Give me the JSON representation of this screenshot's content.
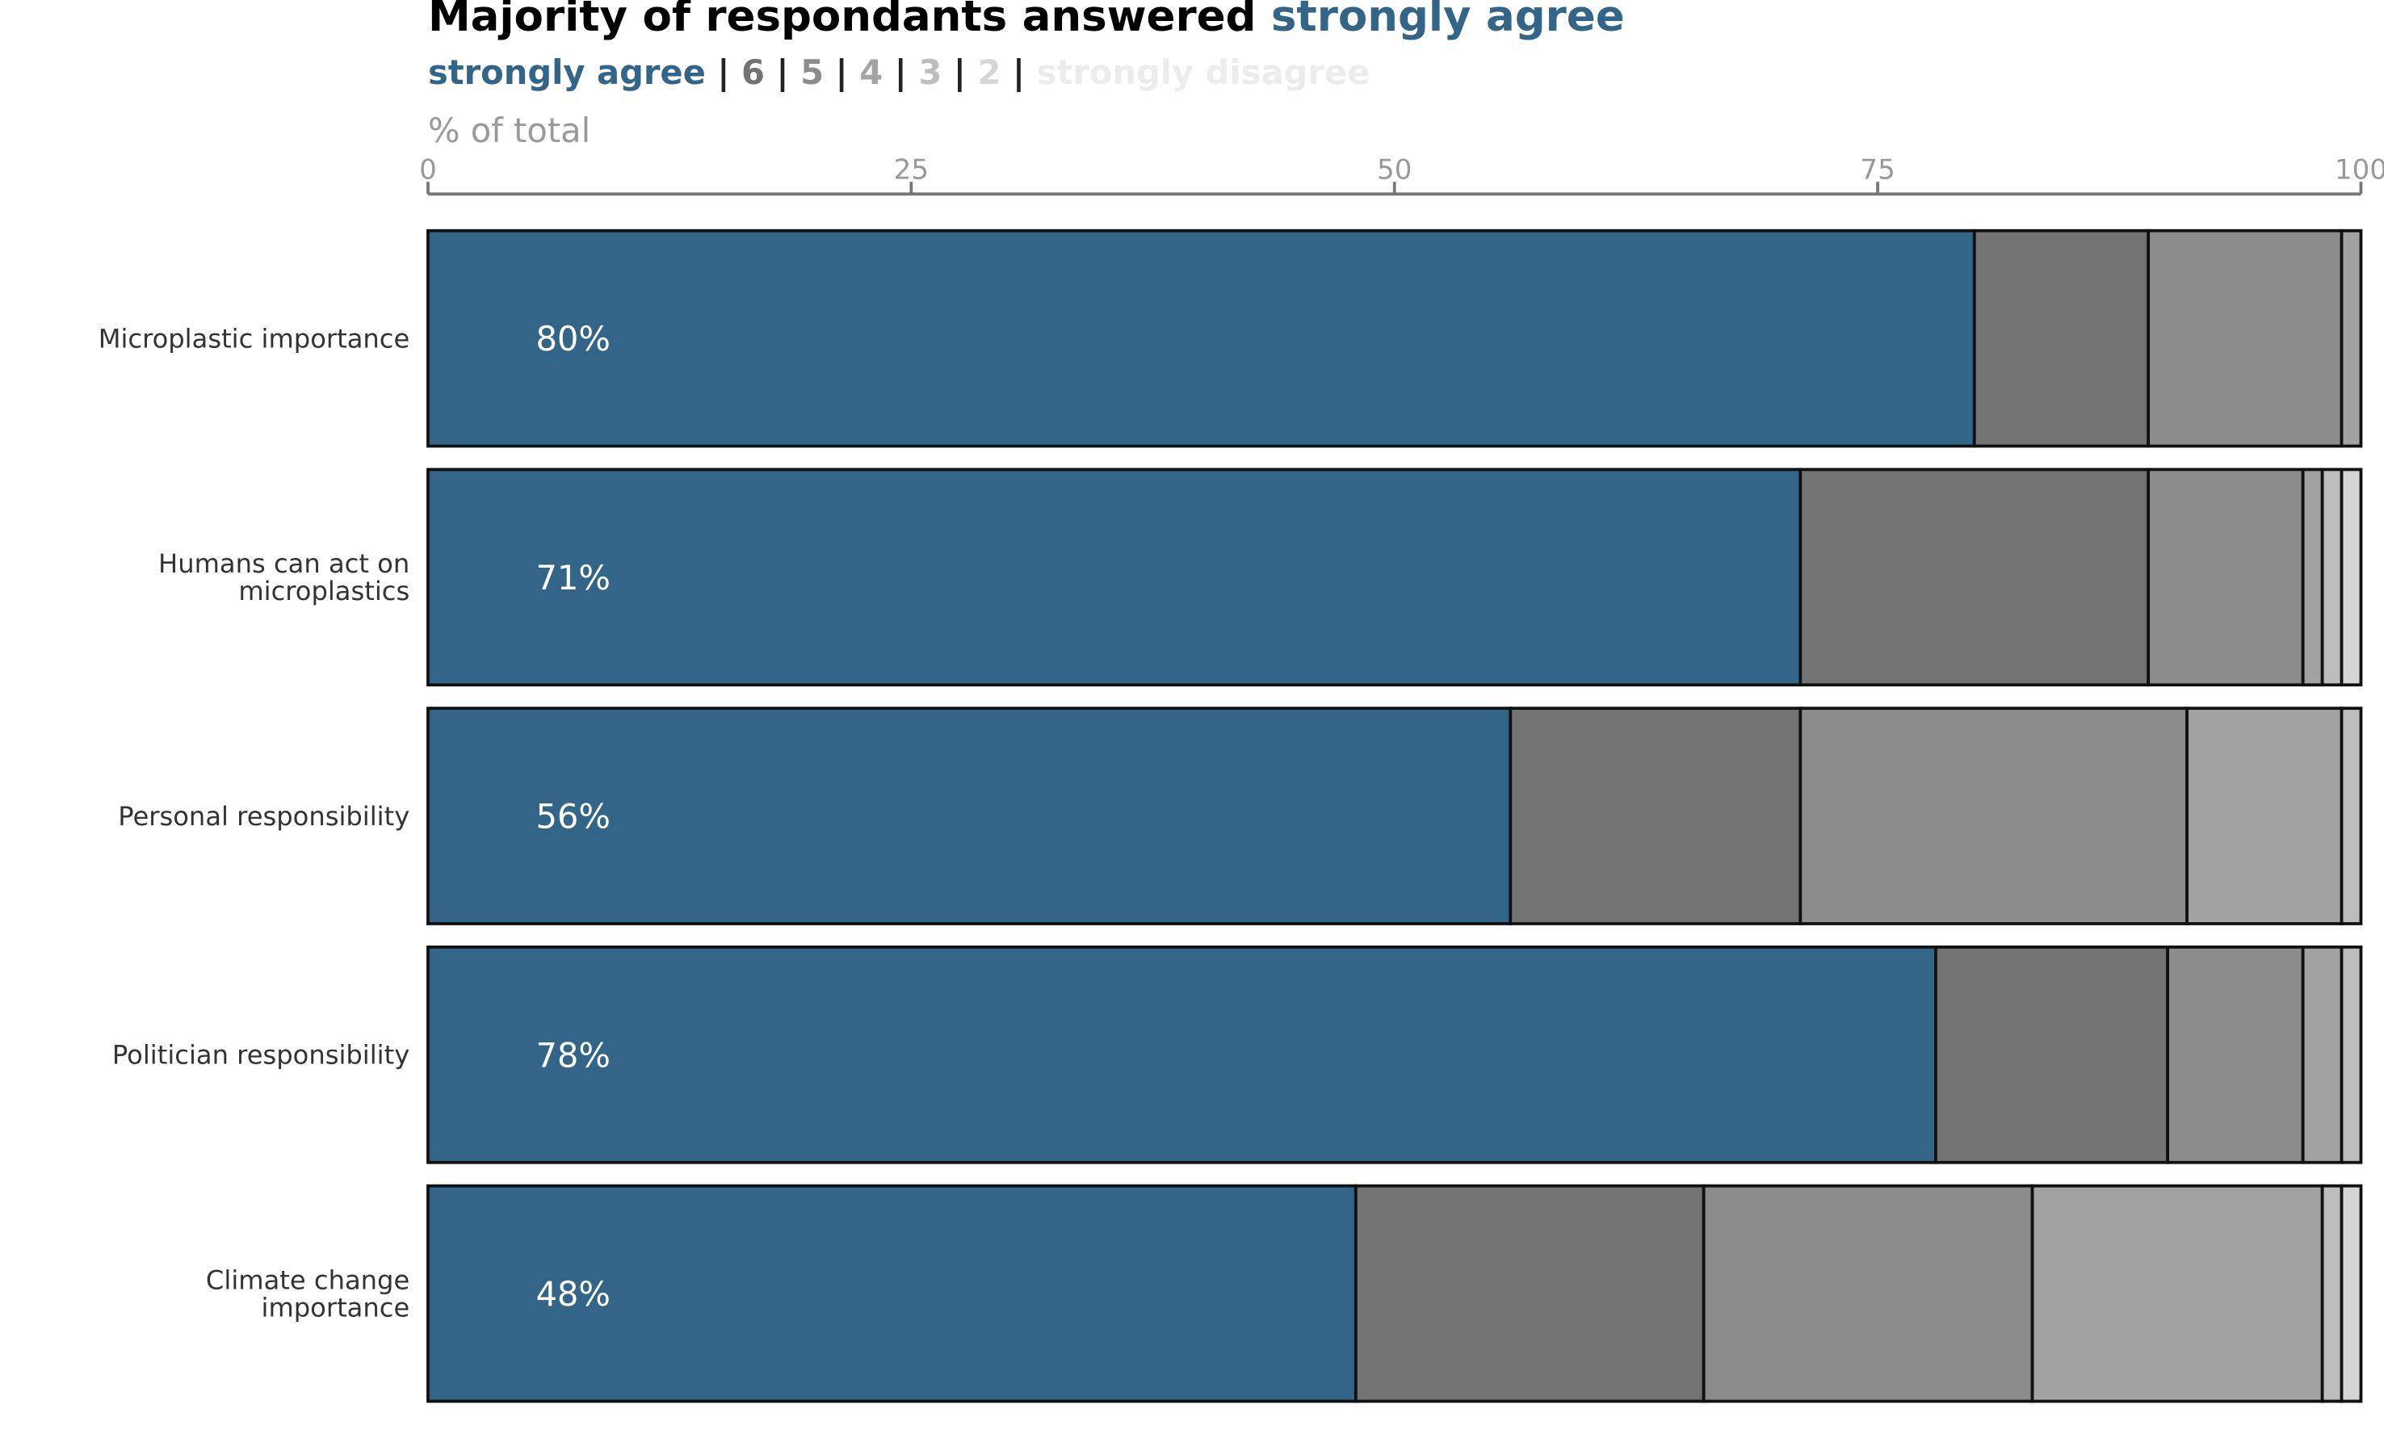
{
  "chart_data": {
    "type": "stacked-bar-horizontal",
    "title": "Majority of respondants answered",
    "x_label": "% of total",
    "categories": [
      "Microplastic importance",
      "Humans can act on\nmicroplastics",
      "Personal responsibility",
      "Politician responsibility",
      "Climate change\nimportance"
    ],
    "series": [
      {
        "name": "strongly agree",
        "color": "#336589",
        "values": [
          80,
          71,
          56,
          78,
          48
        ],
        "value_labels": [
          "80%",
          "71%",
          "56%",
          "78%",
          "48%"
        ]
      },
      {
        "name": "6",
        "color": "#737373",
        "values": [
          9,
          18,
          15,
          12,
          18
        ]
      },
      {
        "name": "5",
        "color": "#8c8c8c",
        "values": [
          10,
          8,
          20,
          7,
          17
        ]
      },
      {
        "name": "4",
        "color": "#a3a3a3",
        "values": [
          1,
          1,
          8,
          2,
          15
        ]
      },
      {
        "name": "3",
        "color": "#bdbdbd",
        "values": [
          0,
          1,
          1,
          1,
          1
        ]
      },
      {
        "name": "2",
        "color": "#d6d6d6",
        "values": [
          0,
          1,
          0,
          0,
          1
        ]
      },
      {
        "name": "strongly disagree",
        "color": "#ececec",
        "values": [
          0,
          0,
          0,
          0,
          0
        ]
      }
    ],
    "xlim": [
      0,
      100
    ],
    "xticks": [
      0,
      25,
      50,
      75,
      100
    ]
  }
}
